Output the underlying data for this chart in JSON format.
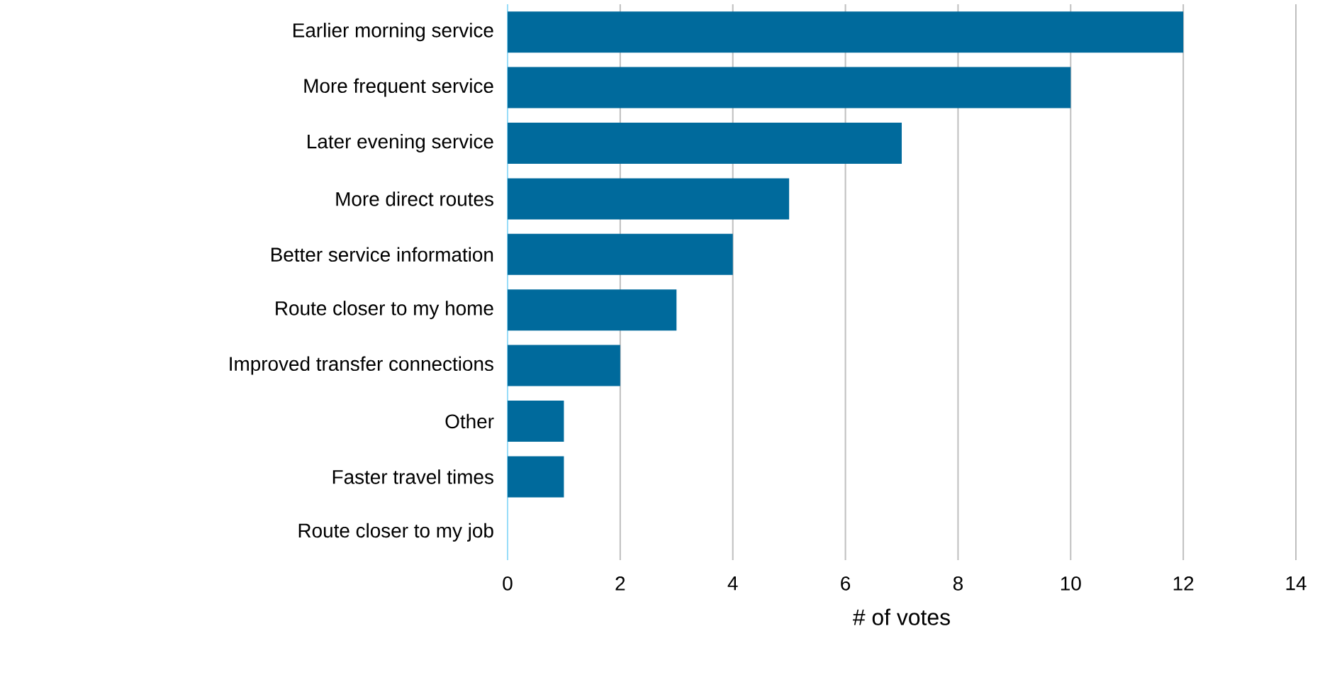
{
  "chart_data": {
    "type": "bar",
    "orientation": "horizontal",
    "xlabel": "# of votes",
    "categories": [
      "Earlier morning service",
      "More frequent service",
      "Later evening service",
      "More direct routes",
      "Better service information",
      "Route closer to my home",
      "Improved transfer connections",
      "Other",
      "Faster travel times",
      "Route closer to my job"
    ],
    "values": [
      12,
      10,
      7,
      5,
      4,
      3,
      2,
      1,
      1,
      0
    ],
    "color": "#006a9c",
    "xlim": [
      0,
      14
    ],
    "xticks": [
      0,
      2,
      4,
      6,
      8,
      10,
      12,
      14
    ],
    "grid": "x"
  }
}
